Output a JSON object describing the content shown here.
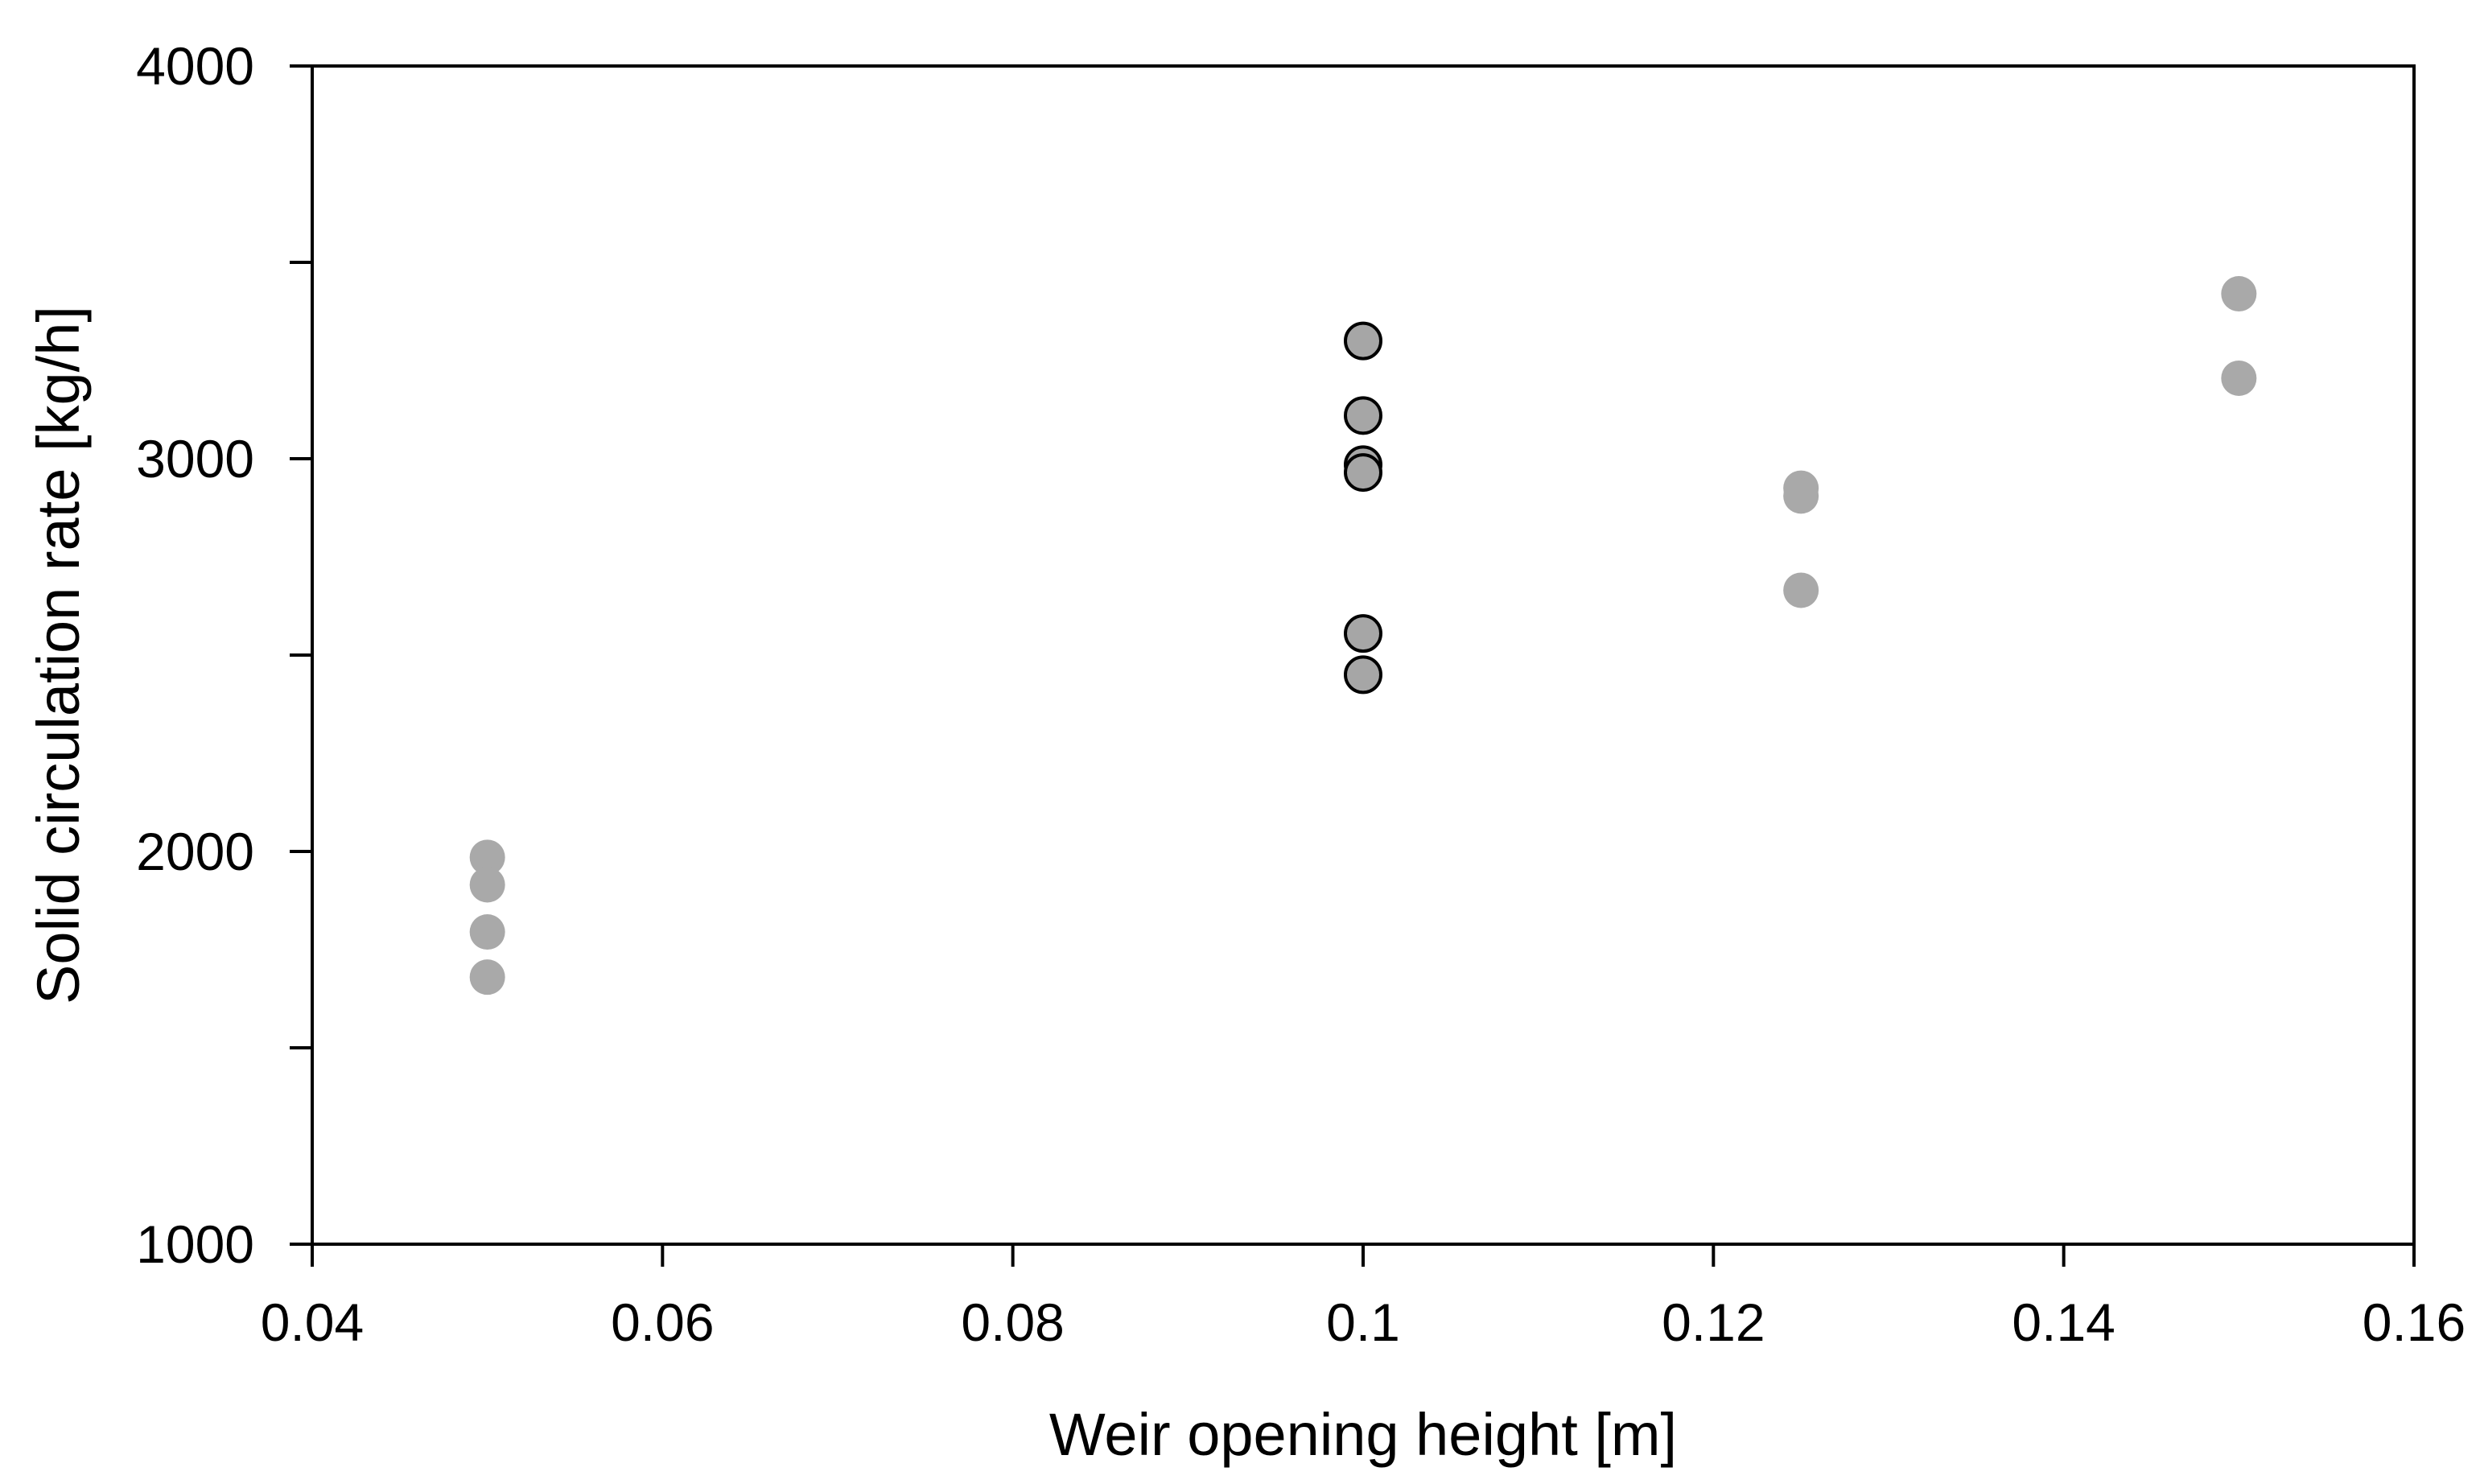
{
  "chart_data": {
    "type": "scatter",
    "title": "",
    "xlabel": "Weir opening height [m]",
    "ylabel": "Solid circulation rate [kg/h]",
    "xlim": [
      0.04,
      0.16
    ],
    "ylim": [
      1000,
      4000
    ],
    "x_ticks": [
      0.04,
      0.06,
      0.08,
      0.1,
      0.12,
      0.14,
      0.16
    ],
    "x_tick_labels": [
      "0.04",
      "0.06",
      "0.08",
      "0.1",
      "0.12",
      "0.14",
      "0.16"
    ],
    "y_ticks": [
      1000,
      1500,
      2000,
      2500,
      3000,
      3500,
      4000
    ],
    "y_tick_labels": [
      "1000",
      "",
      "2000",
      "",
      "3000",
      "",
      "4000"
    ],
    "grid": false,
    "legend": false,
    "series": [
      {
        "style": "light-gray-filled",
        "color": "#a9a9a9",
        "points": [
          {
            "x": 0.05,
            "y": 1985
          },
          {
            "x": 0.05,
            "y": 1915
          },
          {
            "x": 0.05,
            "y": 1795
          },
          {
            "x": 0.05,
            "y": 1680
          },
          {
            "x": 0.125,
            "y": 2925
          },
          {
            "x": 0.125,
            "y": 2905
          },
          {
            "x": 0.125,
            "y": 2665
          },
          {
            "x": 0.15,
            "y": 3420
          },
          {
            "x": 0.15,
            "y": 3205
          }
        ]
      },
      {
        "style": "dark-gray-outlined",
        "color": "#a6a6a6",
        "stroke": "#000000",
        "points": [
          {
            "x": 0.1,
            "y": 3300
          },
          {
            "x": 0.1,
            "y": 3110
          },
          {
            "x": 0.1,
            "y": 2985
          },
          {
            "x": 0.1,
            "y": 2965
          },
          {
            "x": 0.1,
            "y": 2555
          },
          {
            "x": 0.1,
            "y": 2450
          }
        ]
      }
    ]
  }
}
